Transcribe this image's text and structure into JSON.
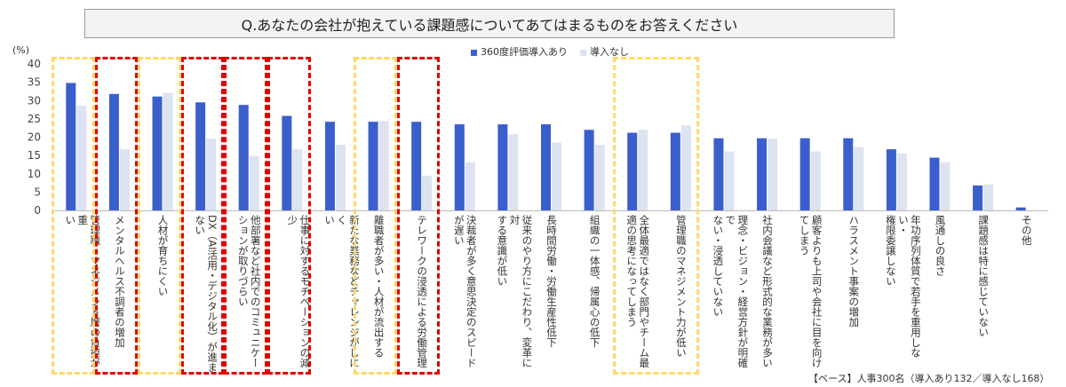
{
  "title": "Q.あなたの会社が抱えている課題感についてあてはまるものをお答えください",
  "footer": "【ベース】人事300名（導入あり132／導入なし168）",
  "colors": {
    "series1": "#3a5fcd",
    "series2": "#dde3f0",
    "yellow": "#ffd966",
    "red": "#e00000"
  },
  "chart_data": {
    "type": "bar",
    "title": "Q.あなたの会社が抱えている課題感についてあてはまるものをお答えください",
    "ylabel": "(%)",
    "ylim": [
      0,
      40
    ],
    "yticks": [
      "0",
      "5",
      "10",
      "15",
      "20",
      "25",
      "30",
      "35",
      "40"
    ],
    "legend_position": "top-center",
    "categories": [
      "管理職・マネジメント層の負担が重\nい",
      "メンタルヘルス不調者の増加",
      "人材が育ちにくい",
      "DX（AI活用・デジタル化）が進ま\nない",
      "他部署など社内でのコミュニケー\nションが取りづらい",
      "仕事に対するモチベーションの減少",
      "新たな業務などチャレンジがしにく\nい",
      "離職者が多い・人材が流出する",
      "テレワークの浸透による労働管理",
      "決裁者が多く意思決定のスピード\nが遅い",
      "従来のやり方にこだわり、変革に対\nする意識が低い",
      "長時間労働・労働生産性低下",
      "組織の一体感、帰属心の低下",
      "全体最適ではなく部門やチーム最\n適の思考になってしまう",
      "管理職のマネジメント力が低い",
      "理念・ビジョン・経営方針が明確で\nない・浸透していない",
      "社内会議など形式的な業務が多い",
      "顧客よりも上司や会社に目を向け\nてしまう",
      "ハラスメント事案の増加",
      "年功序列体質で若手を重用しない・\n権限委譲しない",
      "風通しの良さ",
      "課題感は特に感じていない",
      "その他"
    ],
    "series": [
      {
        "name": "360度評価導入あり",
        "values": [
          34.8,
          31.8,
          31.1,
          29.5,
          28.8,
          25.8,
          24.2,
          24.2,
          24.2,
          23.5,
          23.5,
          23.5,
          22.0,
          21.2,
          21.2,
          19.7,
          19.7,
          19.7,
          19.7,
          16.7,
          14.4,
          6.8,
          0.8
        ]
      },
      {
        "name": "導入なし",
        "values": [
          28.6,
          16.7,
          32.1,
          19.6,
          14.9,
          16.7,
          17.9,
          24.4,
          9.5,
          13.1,
          20.8,
          18.5,
          17.9,
          22.0,
          23.2,
          16.1,
          19.6,
          16.1,
          17.3,
          15.5,
          13.1,
          7.1,
          0.0
        ]
      }
    ],
    "highlights": {
      "yellow": [
        0,
        2,
        7,
        [
          13,
          14
        ]
      ],
      "red": [
        1,
        3,
        4,
        5,
        8
      ]
    }
  }
}
